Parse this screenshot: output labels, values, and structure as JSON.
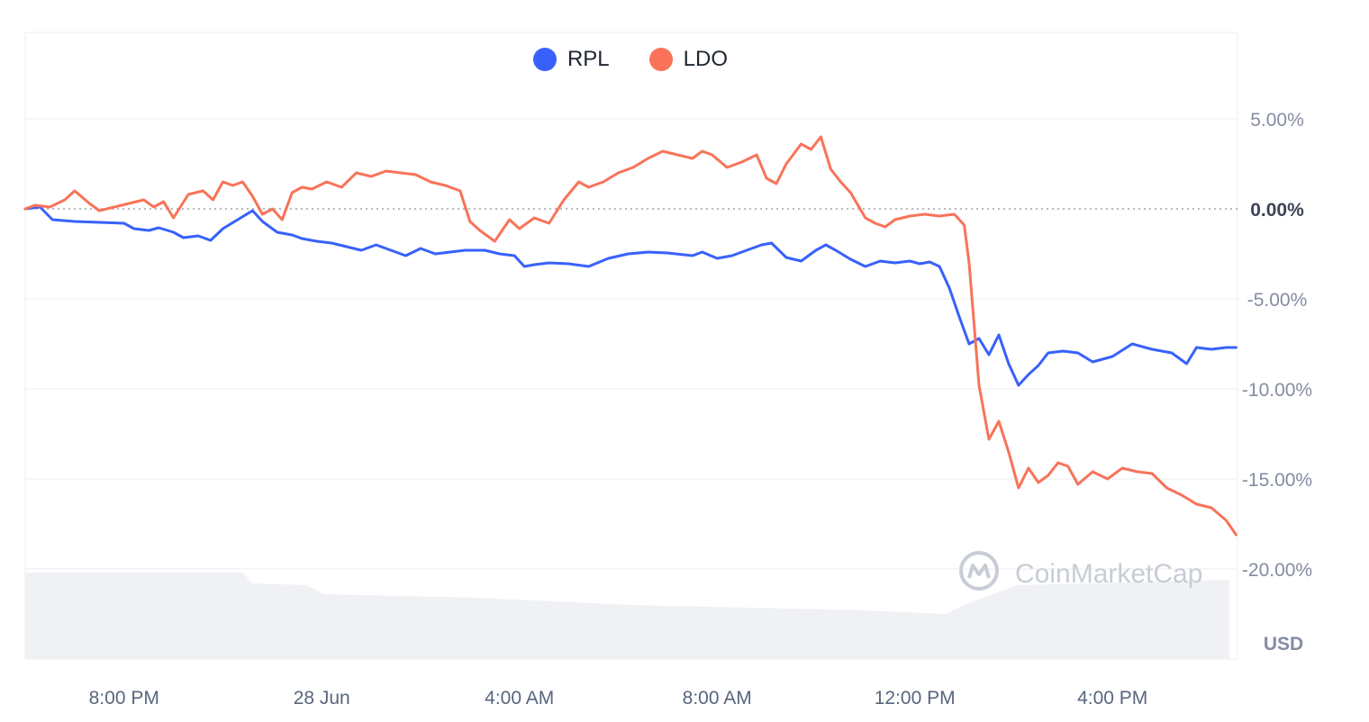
{
  "legend": [
    {
      "label": "RPL",
      "color": "#3861fb"
    },
    {
      "label": "LDO",
      "color": "#f87359"
    }
  ],
  "watermark": "CoinMarketCap",
  "currency_label": "USD",
  "chart_data": {
    "type": "line",
    "ylim": [
      -25.0,
      9.8
    ],
    "y_ticks": [
      "5.00%",
      "0.00%",
      "-5.00%",
      "-10.00%",
      "-15.00%",
      "-20.00%"
    ],
    "y_tick_values": [
      5,
      0,
      -5,
      -10,
      -15,
      -20
    ],
    "x_ticks": [
      "8:00 PM",
      "28 Jun",
      "4:00 AM",
      "8:00 AM",
      "12:00 PM",
      "4:00 PM"
    ],
    "x_tick_positions": [
      3,
      7,
      11,
      15,
      19,
      23
    ],
    "x_range": [
      1,
      25.53
    ],
    "reference_line": 0,
    "series": [
      {
        "name": "RPL",
        "color": "#3861fb",
        "x": [
          1.0,
          1.3,
          1.55,
          2.0,
          2.5,
          3.0,
          3.2,
          3.5,
          3.7,
          4.0,
          4.2,
          4.5,
          4.75,
          5.0,
          5.3,
          5.6,
          5.8,
          6.1,
          6.4,
          6.6,
          6.9,
          7.2,
          7.5,
          7.8,
          8.1,
          8.4,
          8.7,
          9.0,
          9.3,
          9.6,
          9.9,
          10.3,
          10.6,
          10.9,
          11.1,
          11.3,
          11.6,
          12.0,
          12.4,
          12.8,
          13.2,
          13.6,
          14.0,
          14.5,
          14.7,
          15.0,
          15.3,
          15.6,
          15.9,
          16.1,
          16.4,
          16.7,
          17.0,
          17.2,
          17.4,
          17.7,
          18.0,
          18.3,
          18.6,
          18.9,
          19.1,
          19.3,
          19.5,
          19.7,
          19.9,
          20.1,
          20.3,
          20.5,
          20.7,
          20.9,
          21.1,
          21.3,
          21.5,
          21.7,
          22.0,
          22.3,
          22.6,
          23.0,
          23.4,
          23.8,
          24.2,
          24.5,
          24.7,
          25.0,
          25.3,
          25.5
        ],
        "values": [
          0.0,
          0.1,
          -0.6,
          -0.7,
          -0.75,
          -0.8,
          -1.1,
          -1.2,
          -1.05,
          -1.3,
          -1.6,
          -1.5,
          -1.75,
          -1.1,
          -0.6,
          -0.1,
          -0.7,
          -1.3,
          -1.45,
          -1.65,
          -1.8,
          -1.9,
          -2.1,
          -2.3,
          -2.0,
          -2.3,
          -2.6,
          -2.2,
          -2.5,
          -2.4,
          -2.3,
          -2.3,
          -2.5,
          -2.6,
          -3.2,
          -3.1,
          -3.0,
          -3.05,
          -3.2,
          -2.75,
          -2.5,
          -2.4,
          -2.45,
          -2.6,
          -2.4,
          -2.75,
          -2.6,
          -2.3,
          -2.0,
          -1.9,
          -2.7,
          -2.9,
          -2.3,
          -2.0,
          -2.3,
          -2.8,
          -3.2,
          -2.9,
          -3.0,
          -2.9,
          -3.05,
          -2.95,
          -3.2,
          -4.4,
          -6.0,
          -7.5,
          -7.2,
          -8.1,
          -7.0,
          -8.6,
          -9.8,
          -9.2,
          -8.7,
          -8.0,
          -7.9,
          -8.0,
          -8.5,
          -8.2,
          -7.5,
          -7.8,
          -8.0,
          -8.6,
          -7.7,
          -7.8,
          -7.7,
          -7.7
        ]
      },
      {
        "name": "LDO",
        "color": "#f87359",
        "x": [
          1.0,
          1.2,
          1.5,
          1.8,
          2.0,
          2.3,
          2.5,
          2.8,
          3.1,
          3.4,
          3.6,
          3.8,
          4.0,
          4.3,
          4.6,
          4.8,
          5.0,
          5.2,
          5.4,
          5.6,
          5.8,
          6.0,
          6.2,
          6.4,
          6.6,
          6.8,
          7.1,
          7.4,
          7.7,
          8.0,
          8.3,
          8.6,
          8.9,
          9.2,
          9.5,
          9.8,
          10.0,
          10.2,
          10.5,
          10.8,
          11.0,
          11.3,
          11.6,
          11.9,
          12.2,
          12.4,
          12.7,
          13.0,
          13.3,
          13.6,
          13.9,
          14.2,
          14.5,
          14.7,
          14.9,
          15.2,
          15.5,
          15.8,
          16.0,
          16.2,
          16.4,
          16.7,
          16.9,
          17.1,
          17.3,
          17.5,
          17.7,
          18.0,
          18.2,
          18.4,
          18.6,
          18.9,
          19.2,
          19.5,
          19.8,
          20.0,
          20.1,
          20.3,
          20.5,
          20.7,
          20.9,
          21.1,
          21.3,
          21.5,
          21.7,
          21.9,
          22.1,
          22.3,
          22.6,
          22.9,
          23.2,
          23.5,
          23.8,
          24.1,
          24.4,
          24.7,
          25.0,
          25.3,
          25.5
        ],
        "values": [
          0.0,
          0.2,
          0.1,
          0.5,
          1.0,
          0.3,
          -0.1,
          0.1,
          0.3,
          0.5,
          0.1,
          0.4,
          -0.5,
          0.8,
          1.0,
          0.5,
          1.5,
          1.3,
          1.5,
          0.7,
          -0.3,
          0.0,
          -0.6,
          0.9,
          1.2,
          1.1,
          1.5,
          1.2,
          2.0,
          1.8,
          2.1,
          2.0,
          1.9,
          1.5,
          1.3,
          1.0,
          -0.7,
          -1.2,
          -1.8,
          -0.6,
          -1.1,
          -0.5,
          -0.8,
          0.5,
          1.5,
          1.2,
          1.5,
          2.0,
          2.3,
          2.8,
          3.2,
          3.0,
          2.8,
          3.2,
          3.0,
          2.3,
          2.6,
          3.0,
          1.7,
          1.4,
          2.5,
          3.6,
          3.3,
          4.0,
          2.2,
          1.5,
          0.9,
          -0.5,
          -0.8,
          -1.0,
          -0.6,
          -0.4,
          -0.3,
          -0.4,
          -0.3,
          -0.9,
          -3.0,
          -9.8,
          -12.8,
          -11.8,
          -13.5,
          -15.5,
          -14.4,
          -15.2,
          -14.8,
          -14.1,
          -14.3,
          -15.3,
          -14.6,
          -15.0,
          -14.4,
          -14.6,
          -14.7,
          -15.5,
          -15.9,
          -16.4,
          -16.6,
          -17.3,
          -18.1
        ]
      }
    ]
  }
}
